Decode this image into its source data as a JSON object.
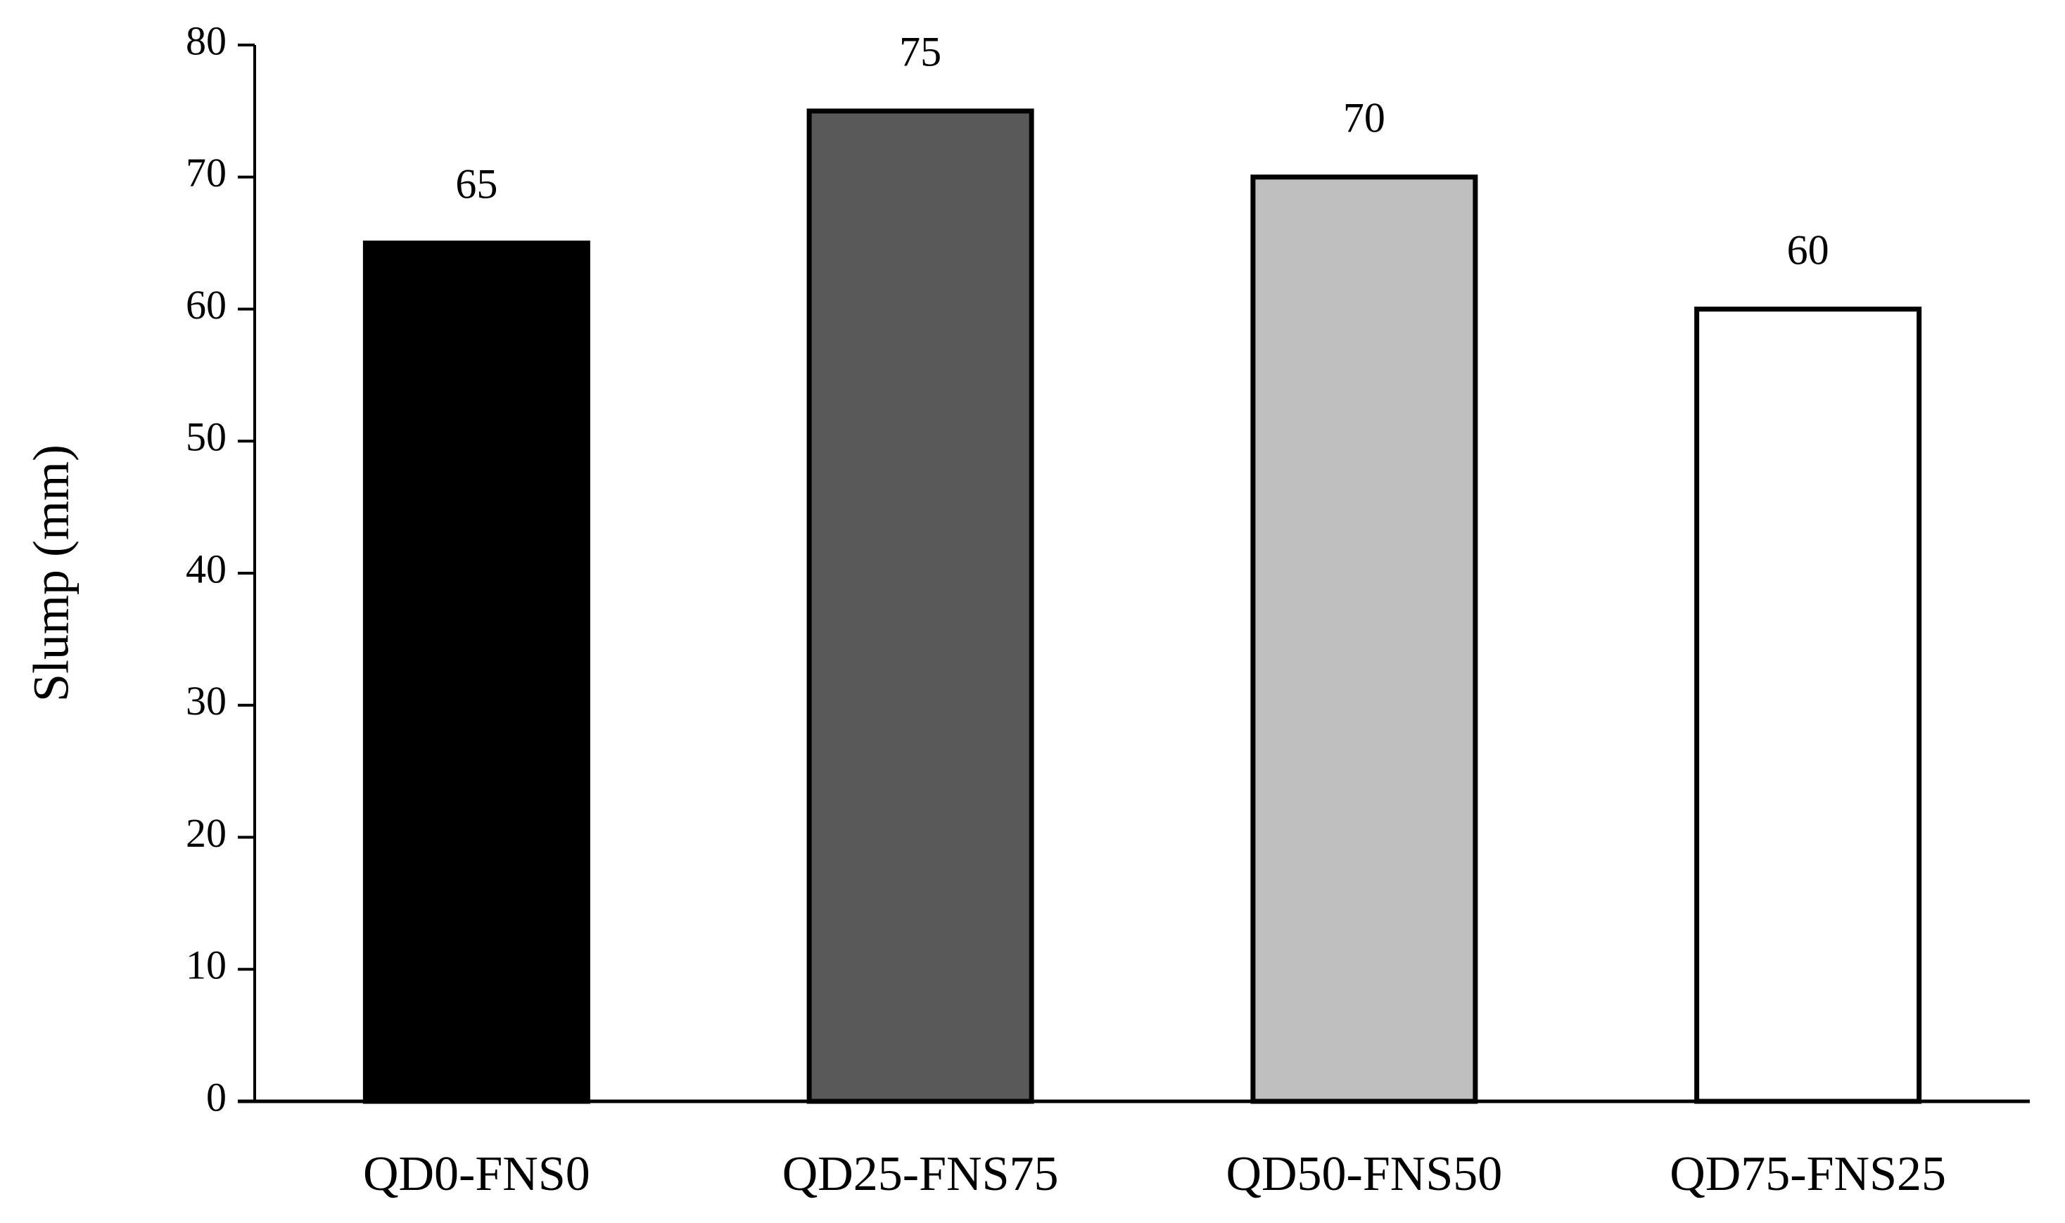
{
  "chart_data": {
    "type": "bar",
    "y_label": "Slump (mm)",
    "categories": [
      "QD0-FNS0",
      "QD25-FNS75",
      "QD50-FNS50",
      "QD75-FNS25"
    ],
    "values": [
      65,
      75,
      70,
      60
    ],
    "colors": [
      "#000000",
      "#595959",
      "#bfbfbf",
      "#ffffff"
    ],
    "edge_color": "#000000",
    "ylim": [
      0,
      80
    ],
    "yticks": [
      0,
      10,
      20,
      30,
      40,
      50,
      60,
      70,
      80
    ],
    "grid": false
  }
}
